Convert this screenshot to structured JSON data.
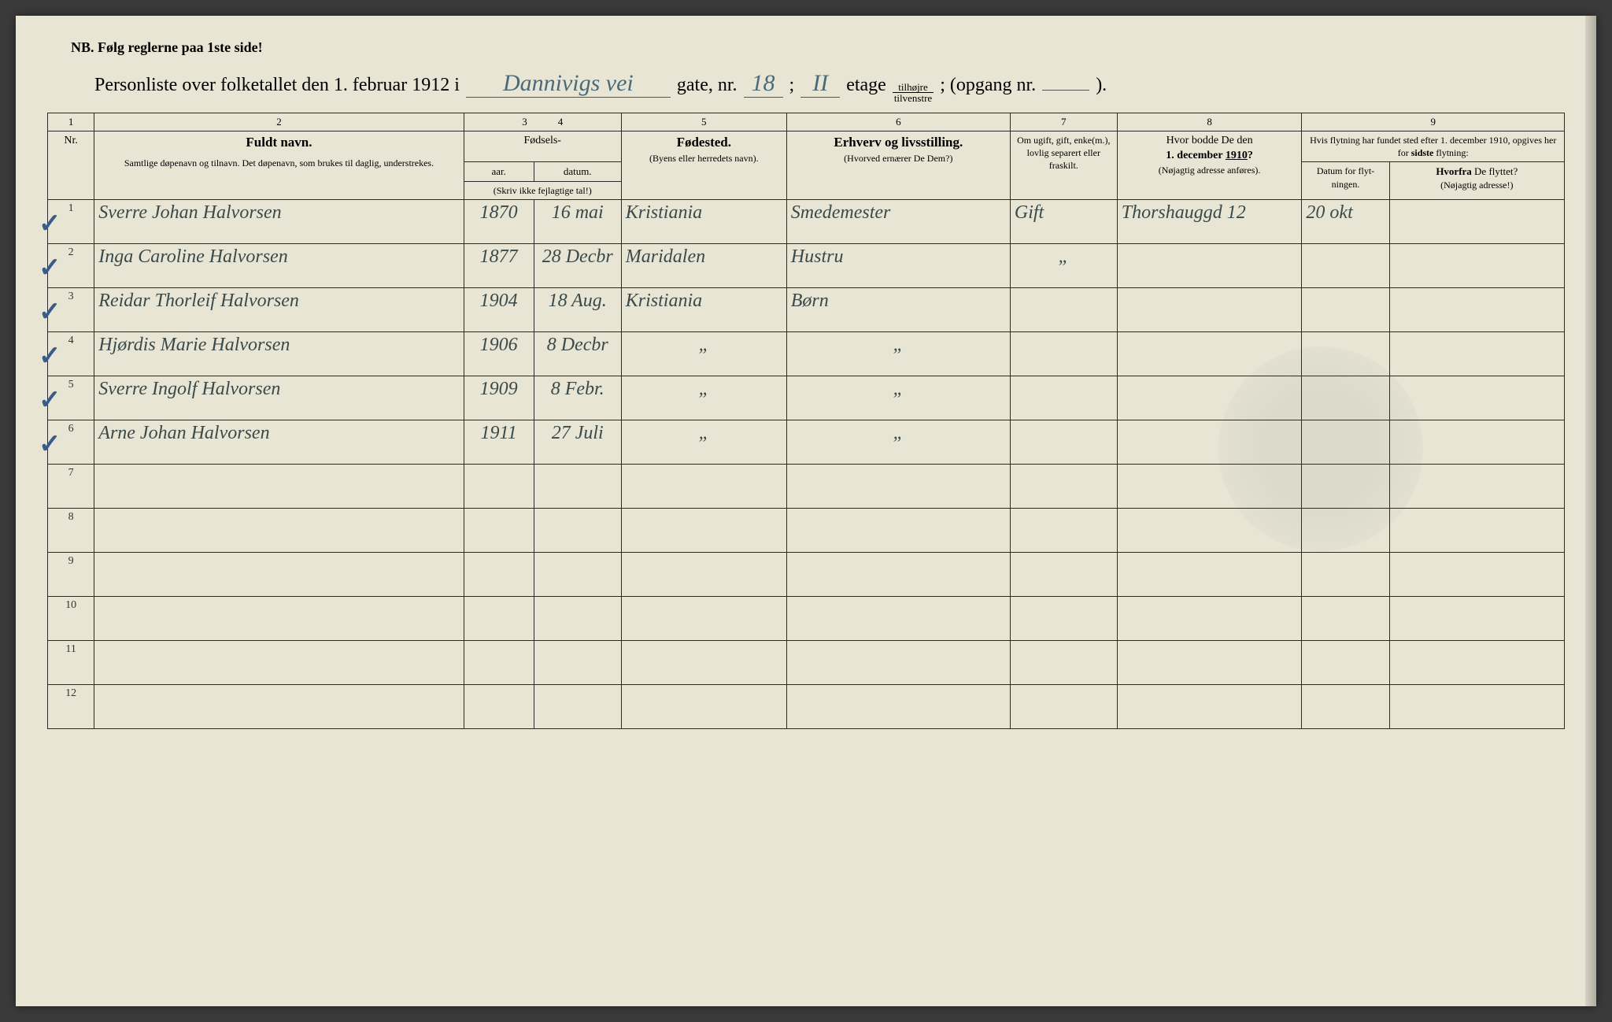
{
  "nb_line": "NB.   Følg reglerne paa 1ste side!",
  "title": {
    "prefix": "Personliste over folketallet den 1. februar 1912 i",
    "street_hand": "Dannivigs vei",
    "gate_nr_label": "gate, nr.",
    "gate_nr_hand": "18",
    "semicolon": ";",
    "etage_hand": "II",
    "etage_label": "etage",
    "frac_top": "tilhøjre",
    "frac_bot": "tilvenstre",
    "opgang_label": "; (opgang nr.",
    "opgang_val": "",
    "end": ")."
  },
  "colnums": [
    "1",
    "2",
    "3",
    "4",
    "5",
    "6",
    "7",
    "8",
    "9"
  ],
  "headers": {
    "nr": "Nr.",
    "name_big": "Fuldt navn.",
    "name_small": "Samtlige døpenavn og tilnavn.  Det døpenavn, som brukes til daglig, understrekes.",
    "fodsels": "Fødsels-",
    "aar": "aar.",
    "datum": "datum.",
    "skriv": "(Skriv ikke fejlagtige tal!)",
    "fodested": "Fødested.",
    "fodested_small": "(Byens eller herredets navn).",
    "erhverv": "Erhverv og livsstilling.",
    "erhverv_small": "(Hvorved ernærer De Dem?)",
    "marital": "Om ugift, gift, enke(m.), lovlig separert eller fraskilt.",
    "addr1910": "Hvor bodde De den 1. december 1910?",
    "addr1910_small": "(Nøjagtig adresse anføres).",
    "moving": "Hvis flytning har fundet sted efter 1. december 1910, opgives her for sidste flytning:",
    "move_date": "Datum for flyt-ningen.",
    "move_from": "Hvorfra De flyttet?",
    "move_from_small": "(Nøjagtig adresse!)"
  },
  "rows": [
    {
      "nr": "1",
      "check": true,
      "name": "Sverre Johan Halvorsen",
      "year": "1870",
      "date": "16 mai",
      "place": "Kristiania",
      "occ": "Smedemester",
      "marital": "Gift",
      "addr": "Thorshauggd 12",
      "mdate": "20 okt",
      "mfrom": ""
    },
    {
      "nr": "2",
      "check": true,
      "name": "Inga Caroline Halvorsen",
      "year": "1877",
      "date": "28 Decbr",
      "place": "Maridalen",
      "occ": "Hustru",
      "marital": "\"",
      "addr": "",
      "mdate": "",
      "mfrom": ""
    },
    {
      "nr": "3",
      "check": true,
      "name": "Reidar Thorleif Halvorsen",
      "year": "1904",
      "date": "18 Aug.",
      "place": "Kristiania",
      "occ": "Børn",
      "marital": "",
      "addr": "",
      "mdate": "",
      "mfrom": ""
    },
    {
      "nr": "4",
      "check": true,
      "name": "Hjørdis Marie Halvorsen",
      "year": "1906",
      "date": "8 Decbr",
      "place": "\"",
      "occ": "\"",
      "marital": "",
      "addr": "",
      "mdate": "",
      "mfrom": ""
    },
    {
      "nr": "5",
      "check": true,
      "name": "Sverre Ingolf Halvorsen",
      "year": "1909",
      "date": "8 Febr.",
      "place": "\"",
      "occ": "\"",
      "marital": "",
      "addr": "",
      "mdate": "",
      "mfrom": ""
    },
    {
      "nr": "6",
      "check": true,
      "name": "Arne Johan Halvorsen",
      "year": "1911",
      "date": "27 Juli",
      "place": "\"",
      "occ": "\"",
      "marital": "",
      "addr": "",
      "mdate": "",
      "mfrom": ""
    },
    {
      "nr": "7",
      "check": false,
      "name": "",
      "year": "",
      "date": "",
      "place": "",
      "occ": "",
      "marital": "",
      "addr": "",
      "mdate": "",
      "mfrom": ""
    },
    {
      "nr": "8",
      "check": false,
      "name": "",
      "year": "",
      "date": "",
      "place": "",
      "occ": "",
      "marital": "",
      "addr": "",
      "mdate": "",
      "mfrom": ""
    },
    {
      "nr": "9",
      "check": false,
      "name": "",
      "year": "",
      "date": "",
      "place": "",
      "occ": "",
      "marital": "",
      "addr": "",
      "mdate": "",
      "mfrom": ""
    },
    {
      "nr": "10",
      "check": false,
      "name": "",
      "year": "",
      "date": "",
      "place": "",
      "occ": "",
      "marital": "",
      "addr": "",
      "mdate": "",
      "mfrom": ""
    },
    {
      "nr": "11",
      "check": false,
      "name": "",
      "year": "",
      "date": "",
      "place": "",
      "occ": "",
      "marital": "",
      "addr": "",
      "mdate": "",
      "mfrom": ""
    },
    {
      "nr": "12",
      "check": false,
      "name": "",
      "year": "",
      "date": "",
      "place": "",
      "occ": "",
      "marital": "",
      "addr": "",
      "mdate": "",
      "mfrom": ""
    }
  ],
  "colors": {
    "paper": "#e8e5d4",
    "ink_print": "#1a1a1a",
    "ink_hand": "#3a4a4a",
    "check_blue": "#3a5a8a"
  }
}
